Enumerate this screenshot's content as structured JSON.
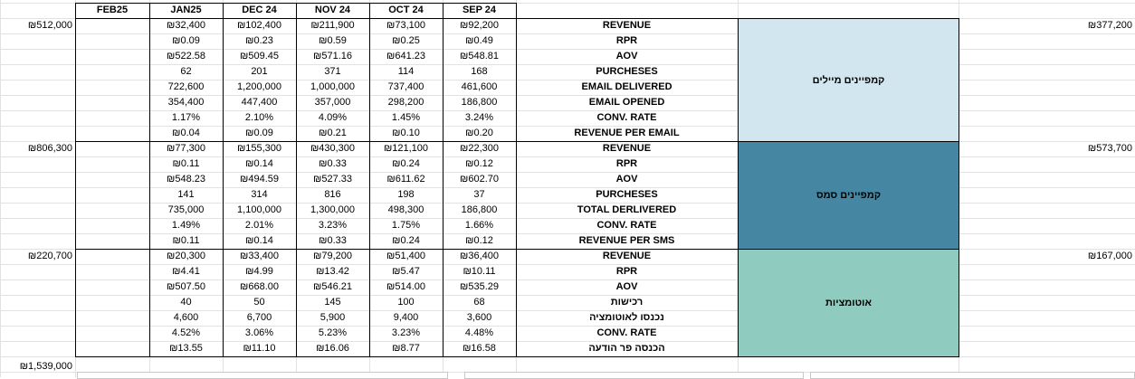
{
  "headers": [
    "FEB25",
    "JAN25",
    "DEC 24",
    "NOV 24",
    "OCT 24",
    "SEP 24"
  ],
  "sections": [
    {
      "name": "קמפיינים מיילים",
      "color": "#d1e6ee",
      "left_total": "₪512,000",
      "right_total": "₪377,200",
      "rows": [
        {
          "label": "REVENUE",
          "jan": "₪32,400",
          "dec": "₪102,400",
          "nov": "₪211,900",
          "oct": "₪73,100",
          "sep": "₪92,200"
        },
        {
          "label": "RPR",
          "jan": "₪0.09",
          "dec": "₪0.23",
          "nov": "₪0.59",
          "oct": "₪0.25",
          "sep": "₪0.49"
        },
        {
          "label": "AOV",
          "jan": "₪522.58",
          "dec": "₪509.45",
          "nov": "₪571.16",
          "oct": "₪641.23",
          "sep": "₪548.81"
        },
        {
          "label": "PURCHESES",
          "jan": "62",
          "dec": "201",
          "nov": "371",
          "oct": "114",
          "sep": "168"
        },
        {
          "label": "EMAIL DELIVERED",
          "jan": "722,600",
          "dec": "1,200,000",
          "nov": "1,000,000",
          "oct": "737,400",
          "sep": "461,600"
        },
        {
          "label": "EMAIL OPENED",
          "jan": "354,400",
          "dec": "447,400",
          "nov": "357,000",
          "oct": "298,200",
          "sep": "186,800"
        },
        {
          "label": "CONV. RATE",
          "jan": "1.17%",
          "dec": "2.10%",
          "nov": "4.09%",
          "oct": "1.45%",
          "sep": "3.24%"
        },
        {
          "label": "REVENUE PER EMAIL",
          "jan": "₪0.04",
          "dec": "₪0.09",
          "nov": "₪0.21",
          "oct": "₪0.10",
          "sep": "₪0.20"
        }
      ]
    },
    {
      "name": "קמפיינים סמס",
      "color": "#4587a2",
      "left_total": "₪806,300",
      "right_total": "₪573,700",
      "rows": [
        {
          "label": "REVENUE",
          "jan": "₪77,300",
          "dec": "₪155,300",
          "nov": "₪430,300",
          "oct": "₪121,100",
          "sep": "₪22,300"
        },
        {
          "label": "RPR",
          "jan": "₪0.11",
          "dec": "₪0.14",
          "nov": "₪0.33",
          "oct": "₪0.24",
          "sep": "₪0.12"
        },
        {
          "label": "AOV",
          "jan": "₪548.23",
          "dec": "₪494.59",
          "nov": "₪527.33",
          "oct": "₪611.62",
          "sep": "₪602.70"
        },
        {
          "label": "PURCHESES",
          "jan": "141",
          "dec": "314",
          "nov": "816",
          "oct": "198",
          "sep": "37"
        },
        {
          "label": "TOTAL  DERLIVERED",
          "jan": "735,000",
          "dec": "1,100,000",
          "nov": "1,300,000",
          "oct": "498,300",
          "sep": "186,800"
        },
        {
          "label": "CONV. RATE",
          "jan": "1.49%",
          "dec": "2.01%",
          "nov": "3.23%",
          "oct": "1.75%",
          "sep": "1.66%"
        },
        {
          "label": "REVENUE PER SMS",
          "jan": "₪0.11",
          "dec": "₪0.14",
          "nov": "₪0.33",
          "oct": "₪0.24",
          "sep": "₪0.12"
        }
      ]
    },
    {
      "name": "אוטומציות",
      "color": "#8fcbbf",
      "left_total": "₪220,700",
      "right_total": "₪167,000",
      "rows": [
        {
          "label": "REVENUE",
          "jan": "₪20,300",
          "dec": "₪33,400",
          "nov": "₪79,200",
          "oct": "₪51,400",
          "sep": "₪36,400"
        },
        {
          "label": "RPR",
          "jan": "₪4.41",
          "dec": "₪4.99",
          "nov": "₪13.42",
          "oct": "₪5.47",
          "sep": "₪10.11"
        },
        {
          "label": "AOV",
          "jan": "₪507.50",
          "dec": "₪668.00",
          "nov": "₪546.21",
          "oct": "₪514.00",
          "sep": "₪535.29"
        },
        {
          "label": "רכישות",
          "jan": "40",
          "dec": "50",
          "nov": "145",
          "oct": "100",
          "sep": "68"
        },
        {
          "label": "נכנסו לאוטומציה",
          "jan": "4,600",
          "dec": "6,700",
          "nov": "5,900",
          "oct": "9,400",
          "sep": "3,600"
        },
        {
          "label": "CONV. RATE",
          "jan": "4.52%",
          "dec": "3.06%",
          "nov": "5.23%",
          "oct": "3.23%",
          "sep": "4.48%"
        },
        {
          "label": "הכנסה פר הודעה",
          "jan": "₪13.55",
          "dec": "₪11.10",
          "nov": "₪16.06",
          "oct": "₪8.77",
          "sep": "₪16.58"
        }
      ]
    }
  ],
  "grand_total": "₪1,539,000"
}
